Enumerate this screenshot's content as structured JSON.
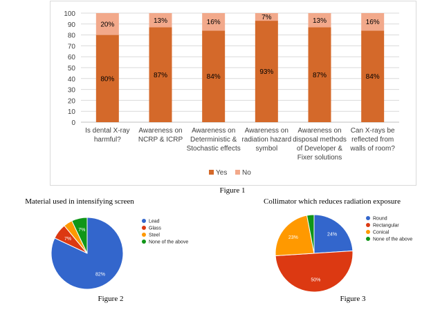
{
  "figure1": {
    "caption": "Figure 1",
    "chart_data": {
      "type": "bar",
      "stacked": true,
      "categories": [
        [
          "Is dental X-ray",
          "harmful?"
        ],
        [
          "Awareness on",
          "NCRP & ICRP"
        ],
        [
          "Awareness on",
          "Deterministic &",
          "Stochastic effects"
        ],
        [
          "Awareness on",
          "radiation hazard",
          "symbol"
        ],
        [
          "Awareness on",
          "disposal methods",
          "of Developer &",
          "Fixer solutions"
        ],
        [
          "Can X-rays be",
          "reflected from",
          "walls of room?"
        ]
      ],
      "series": [
        {
          "name": "Yes",
          "color": "#d4692a",
          "values": [
            80,
            87,
            84,
            93,
            87,
            84
          ],
          "labels": [
            "80%",
            "87%",
            "84%",
            "93%",
            "87%",
            "84%"
          ]
        },
        {
          "name": "No",
          "color": "#f2a98b",
          "values": [
            20,
            13,
            16,
            7,
            13,
            16
          ],
          "labels": [
            "20%",
            "13%",
            "16%",
            "7%",
            "13%",
            "16%"
          ]
        }
      ],
      "ylim": [
        0,
        100
      ],
      "yticks": [
        0,
        10,
        20,
        30,
        40,
        50,
        60,
        70,
        80,
        90,
        100
      ],
      "grid": true,
      "legend": "bottom"
    }
  },
  "figure2": {
    "title": "Material used in intensifying screen",
    "caption": "Figure 2",
    "chart_data": {
      "type": "pie",
      "slices": [
        {
          "name": "Lead",
          "value": 82,
          "label": "82%",
          "color": "#3366cc"
        },
        {
          "name": "Glass",
          "value": 7,
          "label": "7%",
          "color": "#dc3912"
        },
        {
          "name": "Steel",
          "value": 4,
          "label": "",
          "color": "#ff9900"
        },
        {
          "name": "None of the above",
          "value": 7,
          "label": "7%",
          "color": "#109618"
        }
      ],
      "legend": "right"
    }
  },
  "figure3": {
    "title": "Collimator which reduces radiation exposure",
    "caption": "Figure 3",
    "chart_data": {
      "type": "pie",
      "slices": [
        {
          "name": "Round",
          "value": 24,
          "label": "24%",
          "color": "#3366cc"
        },
        {
          "name": "Rectangular",
          "value": 50,
          "label": "50%",
          "color": "#dc3912"
        },
        {
          "name": "Conical",
          "value": 23,
          "label": "23%",
          "color": "#ff9900"
        },
        {
          "name": "None of the above",
          "value": 3,
          "label": "",
          "color": "#109618"
        }
      ],
      "legend": "right"
    }
  }
}
